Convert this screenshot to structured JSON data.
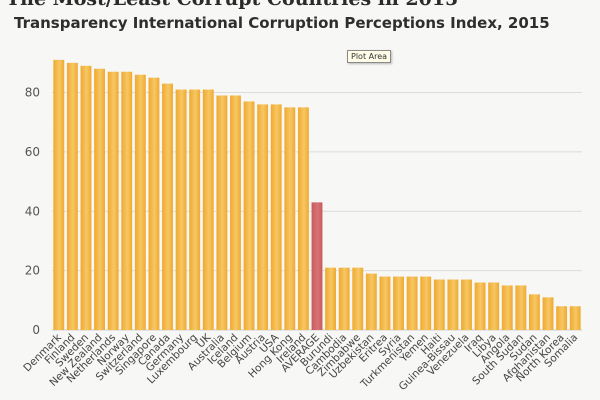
{
  "header": {
    "cut_text": "The Most/Least Corrupt Countries in 2015"
  },
  "tooltip": {
    "text": "Plot Area"
  },
  "chart_data": {
    "type": "bar",
    "title": "Transparency International Corruption Perceptions Index, 2015",
    "xlabel": "",
    "ylabel": "",
    "ylim": [
      0,
      95
    ],
    "yticks": [
      0,
      20,
      40,
      60,
      80
    ],
    "grid": true,
    "legend": "none",
    "colors": {
      "bar": "#f0a92e",
      "bar_light": "#f6c765",
      "highlight": "#c85a5a",
      "highlight_light": "#d87474"
    },
    "highlight_category": "AVERAGE",
    "categories": [
      "Denmark",
      "Finland",
      "Sweden",
      "New Zealand",
      "Netherlands",
      "Norway",
      "Switzerland",
      "Singapore",
      "Canada",
      "Germany",
      "Luxembourg",
      "UK",
      "Australia",
      "Iceland",
      "Belgium",
      "Austria",
      "USA",
      "Hong Kong",
      "Ireland",
      "AVERAGE",
      "Burundi",
      "Cambodia",
      "Zimbabwe",
      "Uzbekistan",
      "Eritrea",
      "Syria",
      "Turkmenistan",
      "Yemen",
      "Haiti",
      "Guinea-Bissau",
      "Venezuela",
      "Iraq",
      "Libya",
      "Angola",
      "South Sudan",
      "Sudan",
      "Afghanistan",
      "North Korea",
      "Somalia"
    ],
    "values": [
      91,
      90,
      89,
      88,
      87,
      87,
      86,
      85,
      83,
      81,
      81,
      81,
      79,
      79,
      77,
      76,
      76,
      75,
      75,
      43,
      21,
      21,
      21,
      19,
      18,
      18,
      18,
      18,
      17,
      17,
      17,
      16,
      16,
      15,
      15,
      12,
      11,
      8,
      8
    ]
  }
}
